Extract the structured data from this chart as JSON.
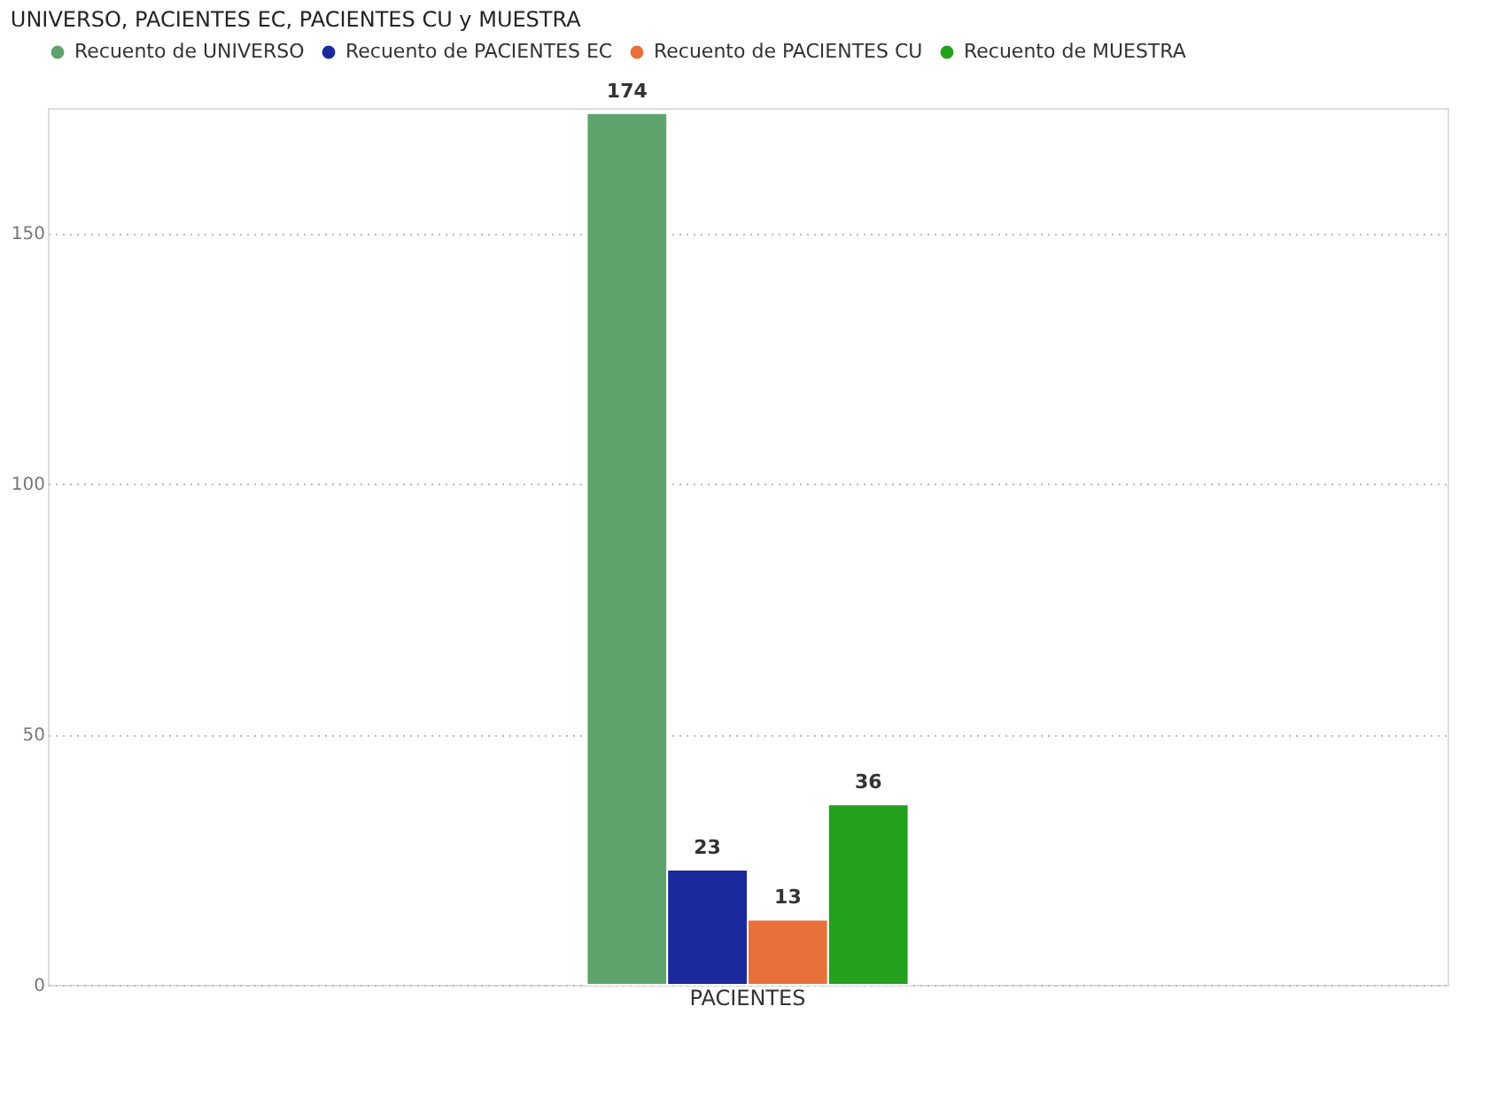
{
  "chart_data": {
    "type": "bar",
    "title": "UNIVERSO, PACIENTES EC,  PACIENTES CU y MUESTRA",
    "categories": [
      "PACIENTES"
    ],
    "series": [
      {
        "name": "Recuento de UNIVERSO",
        "color": "#5fa36c",
        "values": [
          174
        ]
      },
      {
        "name": "Recuento de PACIENTES EC",
        "color": "#1a2a9c",
        "values": [
          23
        ]
      },
      {
        "name": "Recuento de PACIENTES CU",
        "color": "#e8703a",
        "values": [
          13
        ]
      },
      {
        "name": "Recuento de MUESTRA",
        "color": "#22a01e",
        "values": [
          36
        ]
      }
    ],
    "ylim": [
      0,
      175
    ],
    "yticks": [
      0,
      50,
      100,
      150
    ],
    "grid": "y",
    "legend": "top left",
    "data_labels": true
  }
}
